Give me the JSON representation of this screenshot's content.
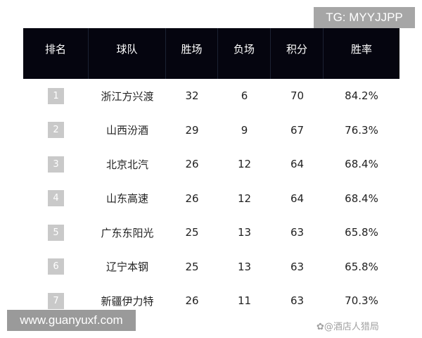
{
  "watermarks": {
    "top": "TG: MYYJJPP",
    "bottom": "www.guanyuxf.com",
    "source": "✿@酒店人猎局"
  },
  "table": {
    "headers": [
      "排名",
      "球队",
      "胜场",
      "负场",
      "积分",
      "胜率"
    ],
    "rows": [
      {
        "rank": "1",
        "team": "浙江方兴渡",
        "wins": "32",
        "losses": "6",
        "points": "70",
        "rate": "84.2%"
      },
      {
        "rank": "2",
        "team": "山西汾酒",
        "wins": "29",
        "losses": "9",
        "points": "67",
        "rate": "76.3%"
      },
      {
        "rank": "3",
        "team": "北京北汽",
        "wins": "26",
        "losses": "12",
        "points": "64",
        "rate": "68.4%"
      },
      {
        "rank": "4",
        "team": "山东高速",
        "wins": "26",
        "losses": "12",
        "points": "64",
        "rate": "68.4%"
      },
      {
        "rank": "5",
        "team": "广东东阳光",
        "wins": "25",
        "losses": "13",
        "points": "63",
        "rate": "65.8%"
      },
      {
        "rank": "6",
        "team": "辽宁本钢",
        "wins": "25",
        "losses": "13",
        "points": "63",
        "rate": "65.8%"
      },
      {
        "rank": "7",
        "team": "新疆伊力特",
        "wins": "26",
        "losses": "11",
        "points": "63",
        "rate": "70.3%"
      }
    ]
  }
}
